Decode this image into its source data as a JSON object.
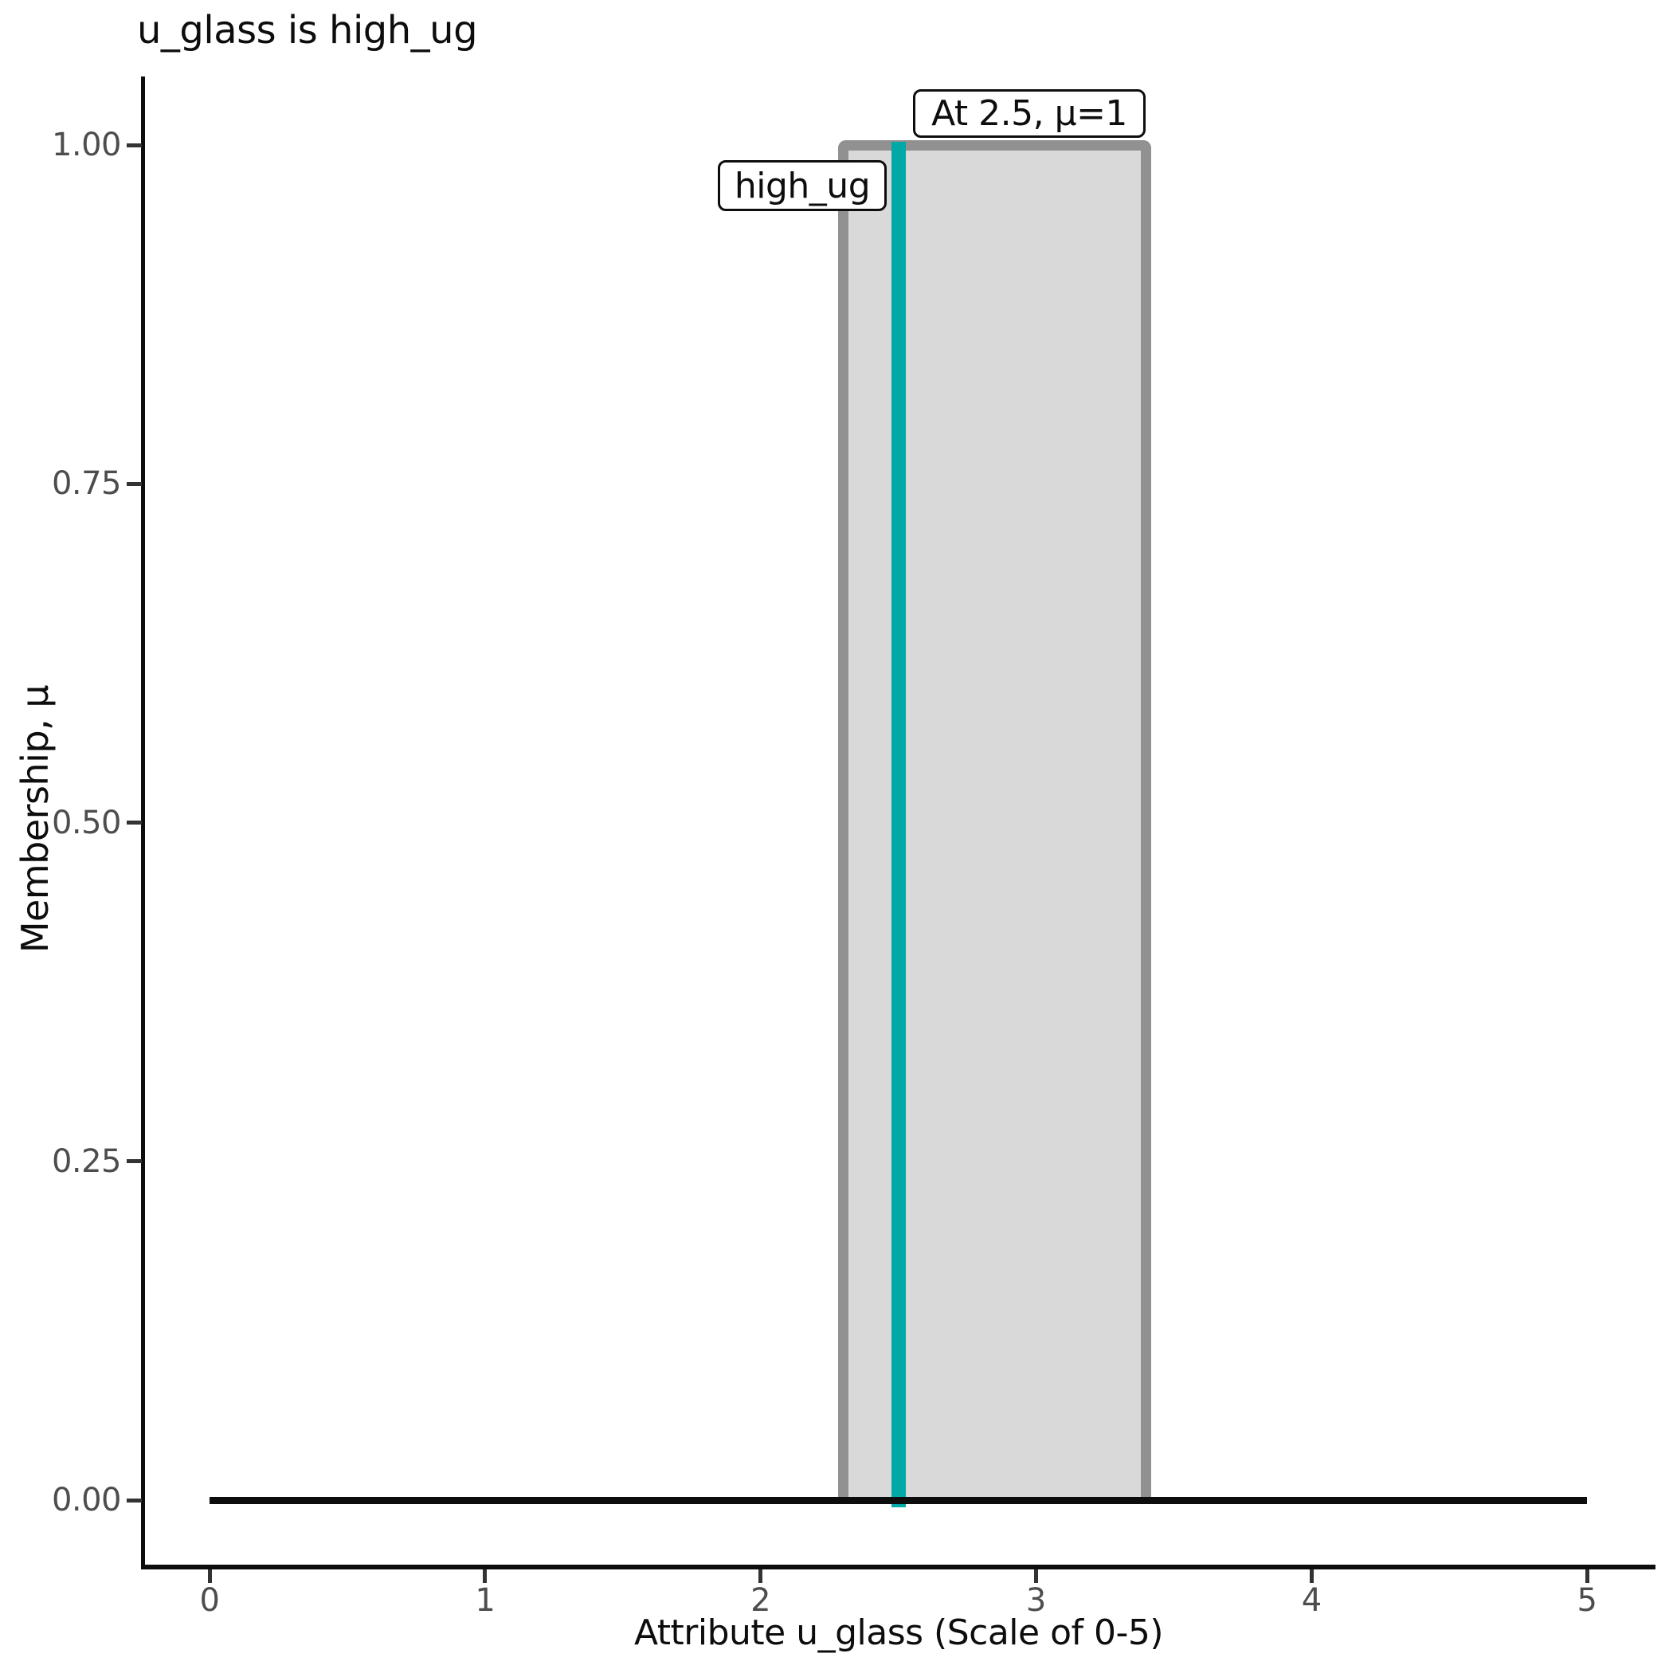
{
  "title": "u_glass is high_ug",
  "chart_data": {
    "type": "area",
    "title": "u_glass is high_ug",
    "xlabel": "Attribute u_glass (Scale of 0-5)",
    "ylabel": "Membership, μ",
    "xlim": [
      0,
      5
    ],
    "ylim": [
      0,
      1
    ],
    "grid": false,
    "legend": "none",
    "x_ticks": [
      {
        "value": 0,
        "label": "0"
      },
      {
        "value": 1,
        "label": "1"
      },
      {
        "value": 2,
        "label": "2"
      },
      {
        "value": 3,
        "label": "3"
      },
      {
        "value": 4,
        "label": "4"
      },
      {
        "value": 5,
        "label": "5"
      }
    ],
    "y_ticks": [
      {
        "value": 0.0,
        "label": "0.00"
      },
      {
        "value": 0.25,
        "label": "0.25"
      },
      {
        "value": 0.5,
        "label": "0.50"
      },
      {
        "value": 0.75,
        "label": "0.75"
      },
      {
        "value": 1.0,
        "label": "1.00"
      }
    ],
    "baseline": {
      "y": 0,
      "x_from": 0,
      "x_to": 5,
      "color": "#0d0d0d"
    },
    "membership_function": {
      "name": "high_ug",
      "shape": "crisp-rectangle",
      "support": [
        2.3,
        3.4
      ],
      "height": 1.0,
      "points": [
        [
          2.3,
          0
        ],
        [
          2.3,
          1
        ],
        [
          3.4,
          1
        ],
        [
          3.4,
          0
        ]
      ],
      "fill_color": "#d9d9d9",
      "border_color": "#919191"
    },
    "input_marker": {
      "x": 2.5,
      "mu": 1,
      "color": "#00a8a8"
    },
    "annotations": [
      {
        "id": "at_value",
        "text": "At 2.5, μ=1"
      },
      {
        "id": "set_name",
        "text": "high_ug"
      }
    ]
  },
  "colors": {
    "background": "#ffffff",
    "axis": "#0d0d0d",
    "tick_mark": "#333333",
    "tick_label": "#4d4d4d",
    "mf_fill": "#d9d9d9",
    "mf_border": "#919191",
    "input_line": "#00a8a8",
    "annotation_border": "#0d0d0d"
  }
}
